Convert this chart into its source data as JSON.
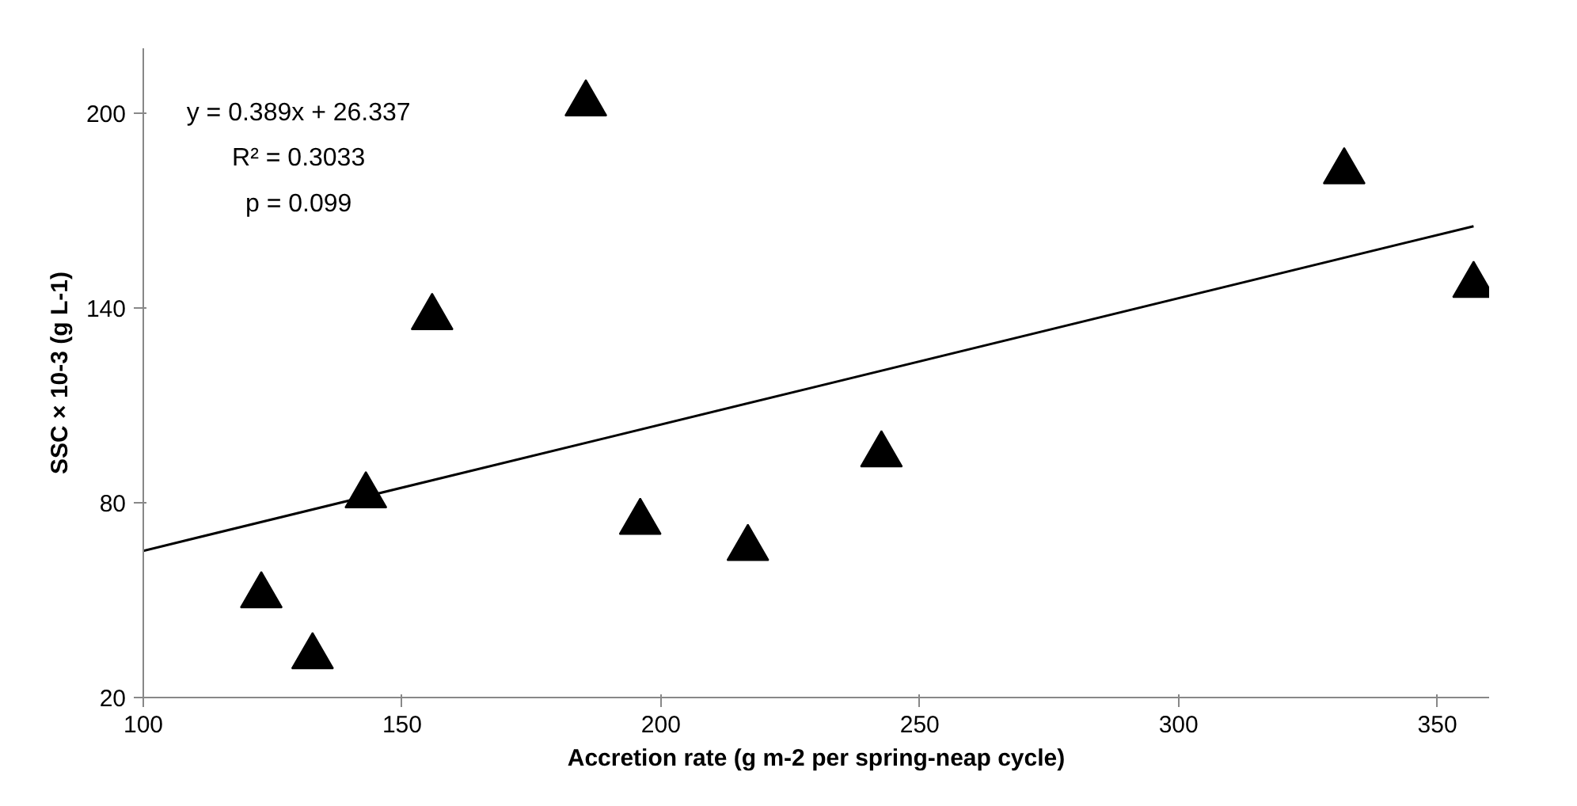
{
  "chart_data": {
    "type": "scatter",
    "xlabel": "Accretion rate (g m-2 per spring-neap cycle)",
    "ylabel": "SSC × 10-3 (g L-1)",
    "xlim": [
      100,
      360
    ],
    "xticks": [
      100,
      150,
      200,
      250,
      300,
      350
    ],
    "ylim": [
      20,
      220
    ],
    "yticks": [
      20,
      80,
      140,
      200
    ],
    "grid": false,
    "marker": "triangle",
    "annotations": [
      "y = 0.389x + 26.337",
      "R² = 0.3033",
      "p = 0.099"
    ],
    "series": [
      {
        "color": "#000000",
        "x": [
          122.8,
          132.7,
          143,
          155.8,
          185.5,
          196,
          216.8,
          242.6,
          332,
          357
        ],
        "values": [
          51.4,
          32.6,
          82.2,
          137.1,
          202.9,
          74,
          66,
          94.8,
          182,
          147
        ]
      },
      {
        "type": "line",
        "color": "#000000",
        "marker": "none",
        "line_style": "solid",
        "x": [
          100,
          357
        ],
        "values": [
          65.2,
          165.2
        ]
      }
    ]
  }
}
